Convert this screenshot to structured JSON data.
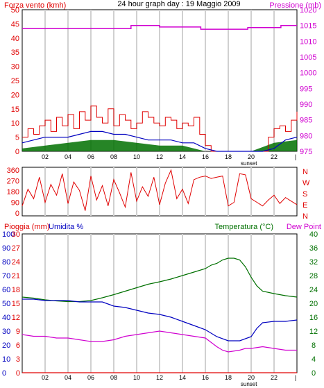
{
  "title": "24 hour graph day : 19 Maggio 2009",
  "colors": {
    "red": "#e00000",
    "magenta": "#d000d0",
    "blue": "#0000c0",
    "green": "#007000",
    "grid": "#d0d0d0",
    "frame": "#000000"
  },
  "time_axis": {
    "hour_ticks": [
      "02",
      "04",
      "06",
      "08",
      "10",
      "12",
      "14",
      "16",
      "18",
      "20",
      "22"
    ],
    "sunset_label": "sunset",
    "sunset_hour": 19.8,
    "end_tick": "|"
  },
  "chart_data": [
    {
      "type": "line",
      "name": "wind_pressure",
      "left_label": "Forza vento (kmh)",
      "right_label": "Pressione (mb)",
      "left_axis": {
        "ticks": [
          0,
          5,
          10,
          15,
          20,
          25,
          30,
          35,
          40,
          45,
          50
        ],
        "ylim": [
          0,
          50
        ]
      },
      "right_axis": {
        "ticks": [
          975,
          980,
          985,
          990,
          995,
          1000,
          1005,
          1010,
          1015,
          1020
        ],
        "ylim": [
          975,
          1020
        ]
      },
      "pressure": {
        "x": [
          0,
          9.5,
          9.5,
          12,
          12,
          15.6,
          15.6,
          19.7,
          19.7,
          22.6,
          22.6,
          24
        ],
        "values": [
          1014,
          1014,
          1015,
          1015,
          1014.5,
          1014.5,
          1013.8,
          1013.8,
          1014.3,
          1014.3,
          1015,
          1015
        ]
      },
      "wind_gust": {
        "x": [
          0,
          0.5,
          1,
          1.5,
          2,
          2.5,
          3,
          3.5,
          4,
          4.5,
          5,
          5.5,
          6,
          6.5,
          7,
          7.5,
          8,
          8.5,
          9,
          9.5,
          10,
          10.5,
          11,
          11.5,
          12,
          12.5,
          13,
          13.5,
          14,
          14.5,
          15,
          15.5,
          16,
          16.5,
          17,
          17.5,
          18,
          18.5,
          19,
          19.5,
          20,
          20.5,
          21,
          21.5,
          22,
          22.5,
          23,
          23.5,
          24
        ],
        "values": [
          5,
          8,
          6,
          9,
          11,
          7,
          12,
          9,
          13,
          8,
          14,
          11,
          16,
          12,
          10,
          15,
          9,
          13,
          11,
          8,
          10,
          14,
          12,
          10,
          9,
          12,
          11,
          8,
          10,
          9,
          12,
          6,
          2,
          0,
          0,
          0,
          0,
          0,
          0,
          0,
          0,
          0,
          0,
          5,
          8,
          9,
          7,
          11,
          14
        ]
      },
      "wind_avg": {
        "x": [
          0,
          1,
          2,
          3,
          4,
          5,
          6,
          7,
          8,
          9,
          10,
          11,
          12,
          13,
          14,
          15,
          16,
          17,
          18,
          19,
          20,
          21,
          22,
          23,
          24
        ],
        "values": [
          3,
          4,
          5,
          5,
          5,
          6,
          7,
          7,
          6,
          6,
          5,
          4,
          4,
          4,
          3,
          3,
          1,
          0,
          0,
          0,
          0,
          0,
          1,
          4,
          5
        ]
      },
      "wind_min": {
        "x": [
          0,
          2,
          4,
          6,
          8,
          10,
          12,
          14,
          16,
          18,
          20,
          22,
          24
        ],
        "values": [
          1,
          2,
          3,
          4,
          4,
          3,
          2,
          2,
          0,
          0,
          0,
          3,
          4
        ]
      }
    },
    {
      "type": "line",
      "name": "wind_direction",
      "right_letters": [
        "N",
        "W",
        "S",
        "E",
        "N"
      ],
      "left_axis": {
        "ticks": [
          0,
          90,
          180,
          270,
          360
        ],
        "ylim": [
          0,
          360
        ]
      },
      "series": [
        {
          "x": [
            0,
            0.5,
            1,
            1.5,
            2,
            2.5,
            3,
            3.5,
            4,
            4.5,
            5,
            5.5,
            6,
            6.5,
            7,
            7.5,
            8,
            8.5,
            9,
            9.5,
            10,
            10.5,
            11,
            11.5,
            12,
            12.5,
            13,
            13.5,
            14,
            14.5,
            15,
            15.5,
            16,
            16.5,
            17,
            17.5,
            18,
            18.5,
            19,
            19.5,
            20,
            20.5,
            21,
            21.5,
            22,
            22.5,
            23,
            23.5,
            24
          ],
          "values": [
            60,
            200,
            120,
            300,
            90,
            240,
            150,
            330,
            80,
            260,
            190,
            20,
            310,
            110,
            230,
            60,
            280,
            170,
            50,
            340,
            100,
            220,
            140,
            300,
            70,
            250,
            360,
            120,
            200,
            80,
            280,
            300,
            310,
            290,
            300,
            310,
            60,
            90,
            330,
            320,
            120,
            90,
            60,
            110,
            150,
            80,
            130,
            100,
            70
          ]
        }
      ]
    },
    {
      "type": "line",
      "name": "rain_humidity_temp",
      "left_label_1": "Pioggia (mm)",
      "left_label_2": "Umidita %",
      "right_label_1": "Temperatura (°C)",
      "right_label_2": "Dew Point",
      "humidity_axis": {
        "ticks": [
          0,
          10,
          20,
          30,
          40,
          50,
          60,
          70,
          80,
          90,
          100
        ],
        "ylim": [
          0,
          100
        ]
      },
      "rain_axis": {
        "ticks": [
          0,
          3,
          6,
          9,
          12,
          15,
          18,
          21,
          24,
          27,
          30
        ],
        "ylim": [
          0,
          30
        ]
      },
      "temp_axis": {
        "ticks": [
          0,
          4,
          8,
          12,
          16,
          20,
          24,
          28,
          32,
          36,
          40
        ],
        "ylim": [
          0,
          40
        ]
      },
      "series": [
        {
          "key": "temperature",
          "x": [
            0,
            1,
            2,
            3,
            4,
            5,
            6,
            7,
            8,
            9,
            10,
            11,
            12,
            13,
            14,
            15,
            16,
            16.5,
            17,
            17.5,
            18,
            18.5,
            19,
            19.5,
            20,
            20.5,
            21,
            22,
            23,
            24
          ],
          "values": [
            21.8,
            21.5,
            21,
            20.7,
            20.5,
            20.5,
            20.8,
            21.6,
            22.5,
            23.5,
            24.5,
            25.5,
            26.2,
            27,
            28,
            29,
            30,
            31,
            31.5,
            32.5,
            33,
            33,
            32.5,
            30.5,
            27.5,
            25,
            23.5,
            22.8,
            22.2,
            21.8
          ]
        },
        {
          "key": "humidity",
          "x": [
            0,
            1,
            2,
            3,
            4,
            5,
            6,
            7,
            8,
            9,
            10,
            11,
            12,
            13,
            14,
            15,
            16,
            17,
            18,
            19,
            20,
            20.5,
            21,
            22,
            23,
            24
          ],
          "values": [
            53,
            53,
            52,
            52,
            52,
            51,
            51,
            51,
            48,
            47,
            45,
            43,
            42,
            40,
            37,
            34,
            31,
            26,
            23,
            23,
            26,
            32,
            36,
            37,
            37,
            38
          ]
        },
        {
          "key": "dew_point",
          "x": [
            0,
            1,
            2,
            3,
            4,
            5,
            6,
            7,
            8,
            9,
            10,
            11,
            12,
            13,
            14,
            15,
            16,
            17,
            17.5,
            18,
            19,
            19.5,
            20,
            21,
            22,
            23,
            24
          ],
          "values": [
            11,
            10.5,
            10.5,
            10,
            10,
            9.5,
            9,
            9,
            9.5,
            10.5,
            11,
            11.5,
            12,
            11.5,
            11,
            10.5,
            10,
            7.5,
            6.5,
            6,
            6.5,
            7,
            7,
            7.5,
            7,
            6.5,
            6.5
          ]
        },
        {
          "key": "rain",
          "x": [
            0,
            24
          ],
          "values": [
            0,
            0
          ]
        }
      ]
    }
  ]
}
